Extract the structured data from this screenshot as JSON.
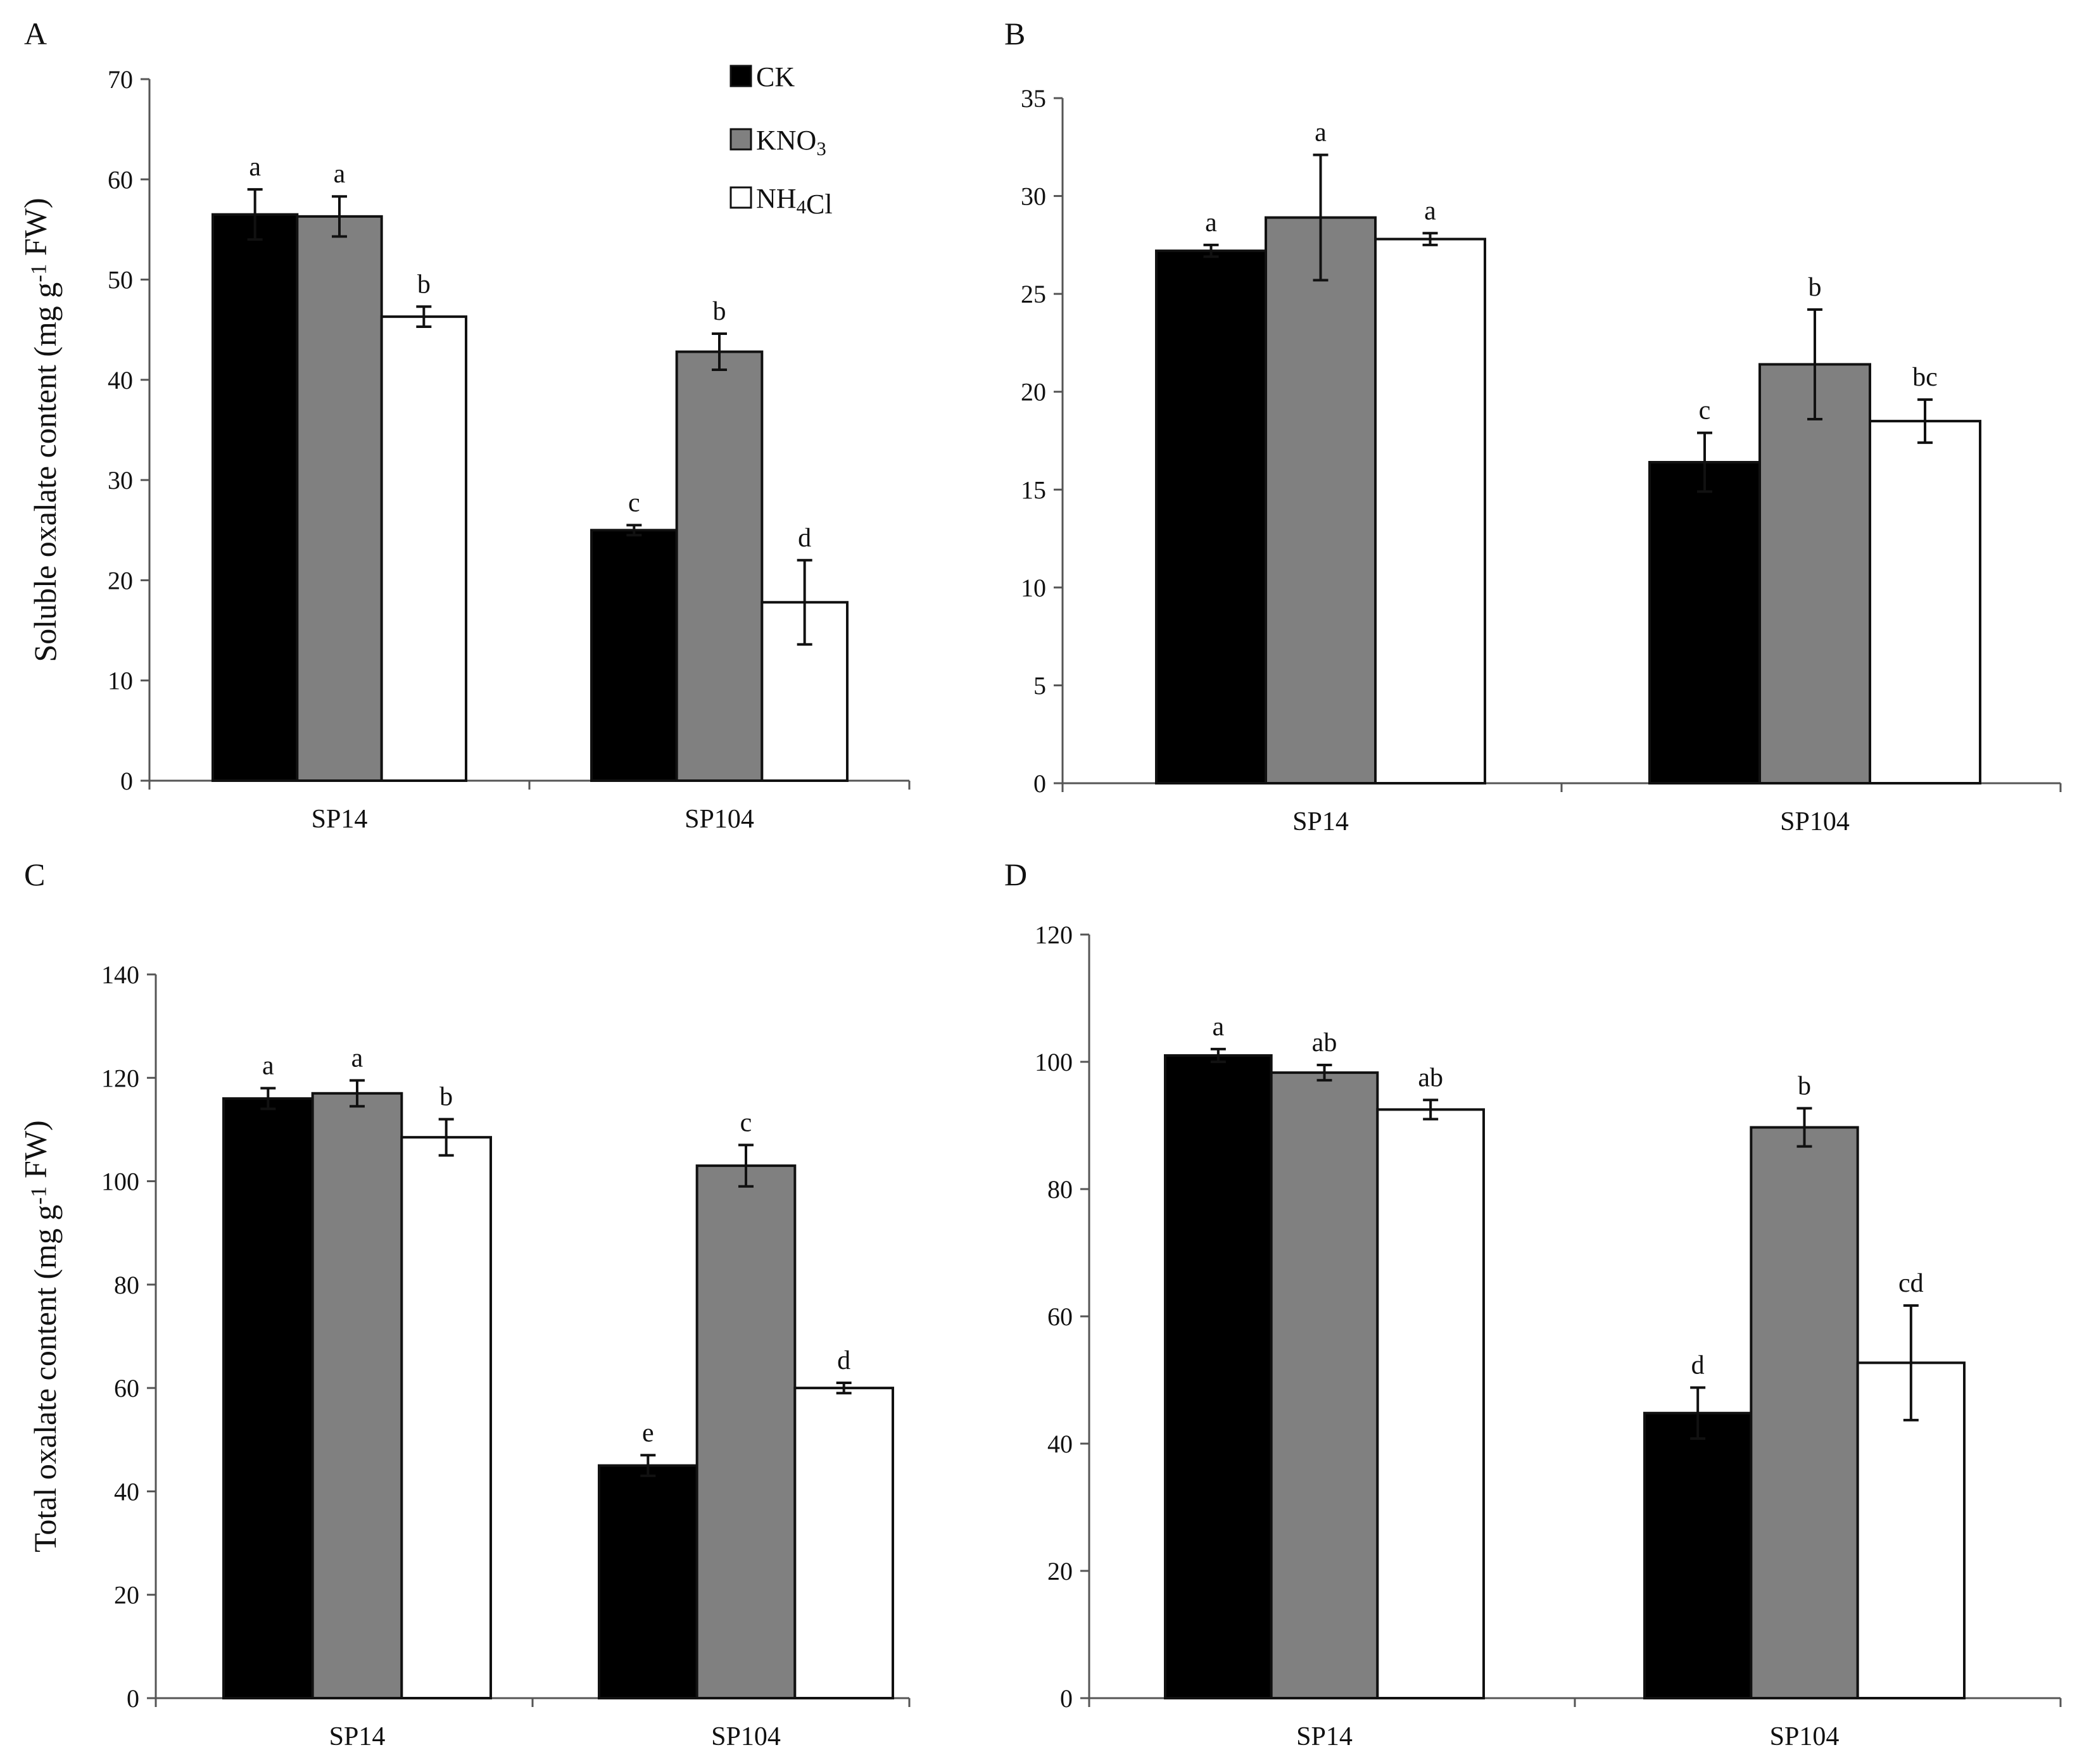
{
  "colors": {
    "CK": "#000000",
    "KNO3": "#808080",
    "NH4Cl": "#ffffff"
  },
  "chart_data": [
    {
      "panel": "A",
      "type": "bar",
      "categories": [
        "SP14",
        "SP104"
      ],
      "ylabel": "Soluble oxalate content (mg g-1 FW)",
      "ylim": [
        0,
        70
      ],
      "yticks": [
        0,
        10,
        20,
        30,
        40,
        50,
        60,
        70
      ],
      "legend": "top-center",
      "series": [
        {
          "name": "CK",
          "values": [
            56.5,
            25.0
          ],
          "errors": [
            2.5,
            0.5
          ],
          "labels": [
            "a",
            "c"
          ]
        },
        {
          "name": "KNO3",
          "values": [
            56.3,
            42.8
          ],
          "errors": [
            2.0,
            1.8
          ],
          "labels": [
            "a",
            "b"
          ]
        },
        {
          "name": "NH4Cl",
          "values": [
            46.3,
            17.8
          ],
          "errors": [
            1.0,
            4.2
          ],
          "labels": [
            "b",
            "d"
          ]
        }
      ]
    },
    {
      "panel": "B",
      "type": "bar",
      "categories": [
        "SP14",
        "SP104"
      ],
      "ylabel": "",
      "ylim": [
        0,
        35
      ],
      "yticks": [
        0,
        5,
        10,
        15,
        20,
        25,
        30,
        35
      ],
      "series": [
        {
          "name": "CK",
          "values": [
            27.2,
            16.4
          ],
          "errors": [
            0.3,
            1.5
          ],
          "labels": [
            "a",
            "c"
          ]
        },
        {
          "name": "KNO3",
          "values": [
            28.9,
            21.4
          ],
          "errors": [
            3.2,
            2.8
          ],
          "labels": [
            "a",
            "b"
          ]
        },
        {
          "name": "NH4Cl",
          "values": [
            27.8,
            18.5
          ],
          "errors": [
            0.3,
            1.1
          ],
          "labels": [
            "a",
            "bc"
          ]
        }
      ]
    },
    {
      "panel": "C",
      "type": "bar",
      "categories": [
        "SP14",
        "SP104"
      ],
      "ylabel": "Total oxalate content (mg g-1 FW)",
      "ylim": [
        0,
        140
      ],
      "yticks": [
        0,
        20,
        40,
        60,
        80,
        100,
        120,
        140
      ],
      "series": [
        {
          "name": "CK",
          "values": [
            116.0,
            45.0
          ],
          "errors": [
            2.0,
            2.0
          ],
          "labels": [
            "a",
            "e"
          ]
        },
        {
          "name": "KNO3",
          "values": [
            117.0,
            103.0
          ],
          "errors": [
            2.5,
            4.0
          ],
          "labels": [
            "a",
            "c"
          ]
        },
        {
          "name": "NH4Cl",
          "values": [
            108.5,
            60.0
          ],
          "errors": [
            3.5,
            1.0
          ],
          "labels": [
            "b",
            "d"
          ]
        }
      ]
    },
    {
      "panel": "D",
      "type": "bar",
      "categories": [
        "SP14",
        "SP104"
      ],
      "ylabel": "",
      "ylim": [
        0,
        120
      ],
      "yticks": [
        0,
        20,
        40,
        60,
        80,
        100,
        120
      ],
      "series": [
        {
          "name": "CK",
          "values": [
            101.0,
            44.8
          ],
          "errors": [
            1.0,
            4.0
          ],
          "labels": [
            "a",
            "d"
          ]
        },
        {
          "name": "KNO3",
          "values": [
            98.3,
            89.7
          ],
          "errors": [
            1.2,
            3.0
          ],
          "labels": [
            "ab",
            "b"
          ]
        },
        {
          "name": "NH4Cl",
          "values": [
            92.5,
            52.7
          ],
          "errors": [
            1.5,
            9.0
          ],
          "labels": [
            "ab",
            "cd"
          ]
        }
      ]
    }
  ]
}
